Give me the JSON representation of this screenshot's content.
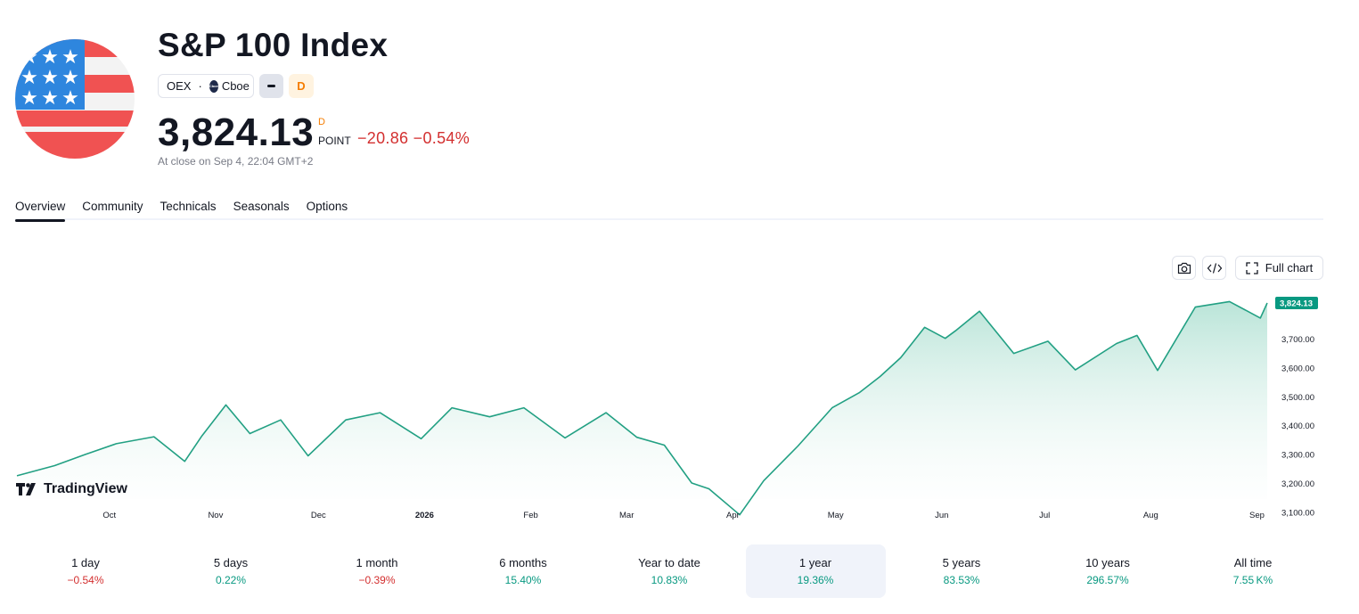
{
  "header": {
    "title": "S&P 100 Index",
    "symbol": "OEX",
    "exchange": "Cboe",
    "exchange_logo_text": "Cboe",
    "badge_d": "D"
  },
  "quote": {
    "price": "3,824.13",
    "price_superscript": "D",
    "unit": "POINT",
    "change": "−20.86 −0.54%",
    "close_info": "At close on Sep 4, 22:04 GMT+2"
  },
  "tabs": [
    "Overview",
    "Community",
    "Technicals",
    "Seasonals",
    "Options"
  ],
  "active_tab": "Overview",
  "chart_tools": {
    "snapshot_icon": "camera-icon",
    "embed_icon": "code-icon",
    "full_chart_label": "Full chart",
    "full_chart_icon": "expand-icon"
  },
  "brand": {
    "name": "TradingView"
  },
  "colors": {
    "line": "#22a083",
    "fill_top": "#b6e3d6",
    "negative": "#d32f2f",
    "positive": "#089981",
    "accent_orange": "#f57c00"
  },
  "chart_data": {
    "type": "area",
    "title": "",
    "xlabel": "",
    "ylabel": "",
    "x_ticks": [
      "Oct",
      "Nov",
      "Dec",
      "2026",
      "Feb",
      "Mar",
      "Apr",
      "May",
      "Jun",
      "Jul",
      "Aug",
      "Sep"
    ],
    "y_ticks": [
      "3,100.00",
      "3,200.00",
      "3,300.00",
      "3,400.00",
      "3,500.00",
      "3,600.00",
      "3,700.00"
    ],
    "ylim": [
      3085,
      3855
    ],
    "last_value_label": "3,824.13",
    "grid": false,
    "series": [
      {
        "x": [
          "2025-09-04",
          "2025-09-15",
          "2025-09-24",
          "2025-10-03",
          "2025-10-14",
          "2025-10-23",
          "2025-10-28",
          "2025-11-04",
          "2025-11-11",
          "2025-11-20",
          "2025-11-28",
          "2025-12-09",
          "2025-12-19",
          "2025-12-31",
          "2026-01-09",
          "2026-01-20",
          "2026-01-30",
          "2026-02-11",
          "2026-02-23",
          "2026-03-04",
          "2026-03-12",
          "2026-03-20",
          "2026-03-25",
          "2026-04-03",
          "2026-04-10",
          "2026-04-20",
          "2026-04-30",
          "2026-05-08",
          "2026-05-14",
          "2026-05-20",
          "2026-05-27",
          "2026-06-02",
          "2026-06-05",
          "2026-06-12",
          "2026-06-22",
          "2026-07-02",
          "2026-07-10",
          "2026-07-22",
          "2026-07-28",
          "2026-08-03",
          "2026-08-14",
          "2026-08-24",
          "2026-09-02",
          "2026-09-04"
        ],
        "values": [
          3227,
          3262,
          3301,
          3338,
          3362,
          3277,
          3365,
          3472,
          3373,
          3420,
          3296,
          3420,
          3445,
          3355,
          3462,
          3431,
          3462,
          3358,
          3445,
          3360,
          3333,
          3202,
          3182,
          3092,
          3210,
          3330,
          3462,
          3515,
          3570,
          3635,
          3740,
          3702,
          3728,
          3796,
          3650,
          3692,
          3593,
          3684,
          3712,
          3591,
          3810,
          3829,
          3772,
          3824.13
        ]
      }
    ]
  },
  "periods": [
    {
      "label": "1 day",
      "value": "−0.54%",
      "dir": "neg"
    },
    {
      "label": "5 days",
      "value": "0.22%",
      "dir": "pos"
    },
    {
      "label": "1 month",
      "value": "−0.39%",
      "dir": "neg"
    },
    {
      "label": "6 months",
      "value": "15.40%",
      "dir": "pos"
    },
    {
      "label": "Year to date",
      "value": "10.83%",
      "dir": "pos"
    },
    {
      "label": "1 year",
      "value": "19.36%",
      "dir": "pos"
    },
    {
      "label": "5 years",
      "value": "83.53%",
      "dir": "pos"
    },
    {
      "label": "10 years",
      "value": "296.57%",
      "dir": "pos"
    },
    {
      "label": "All time",
      "value": "7.55 K%",
      "dir": "pos"
    }
  ],
  "active_period": "1 year"
}
